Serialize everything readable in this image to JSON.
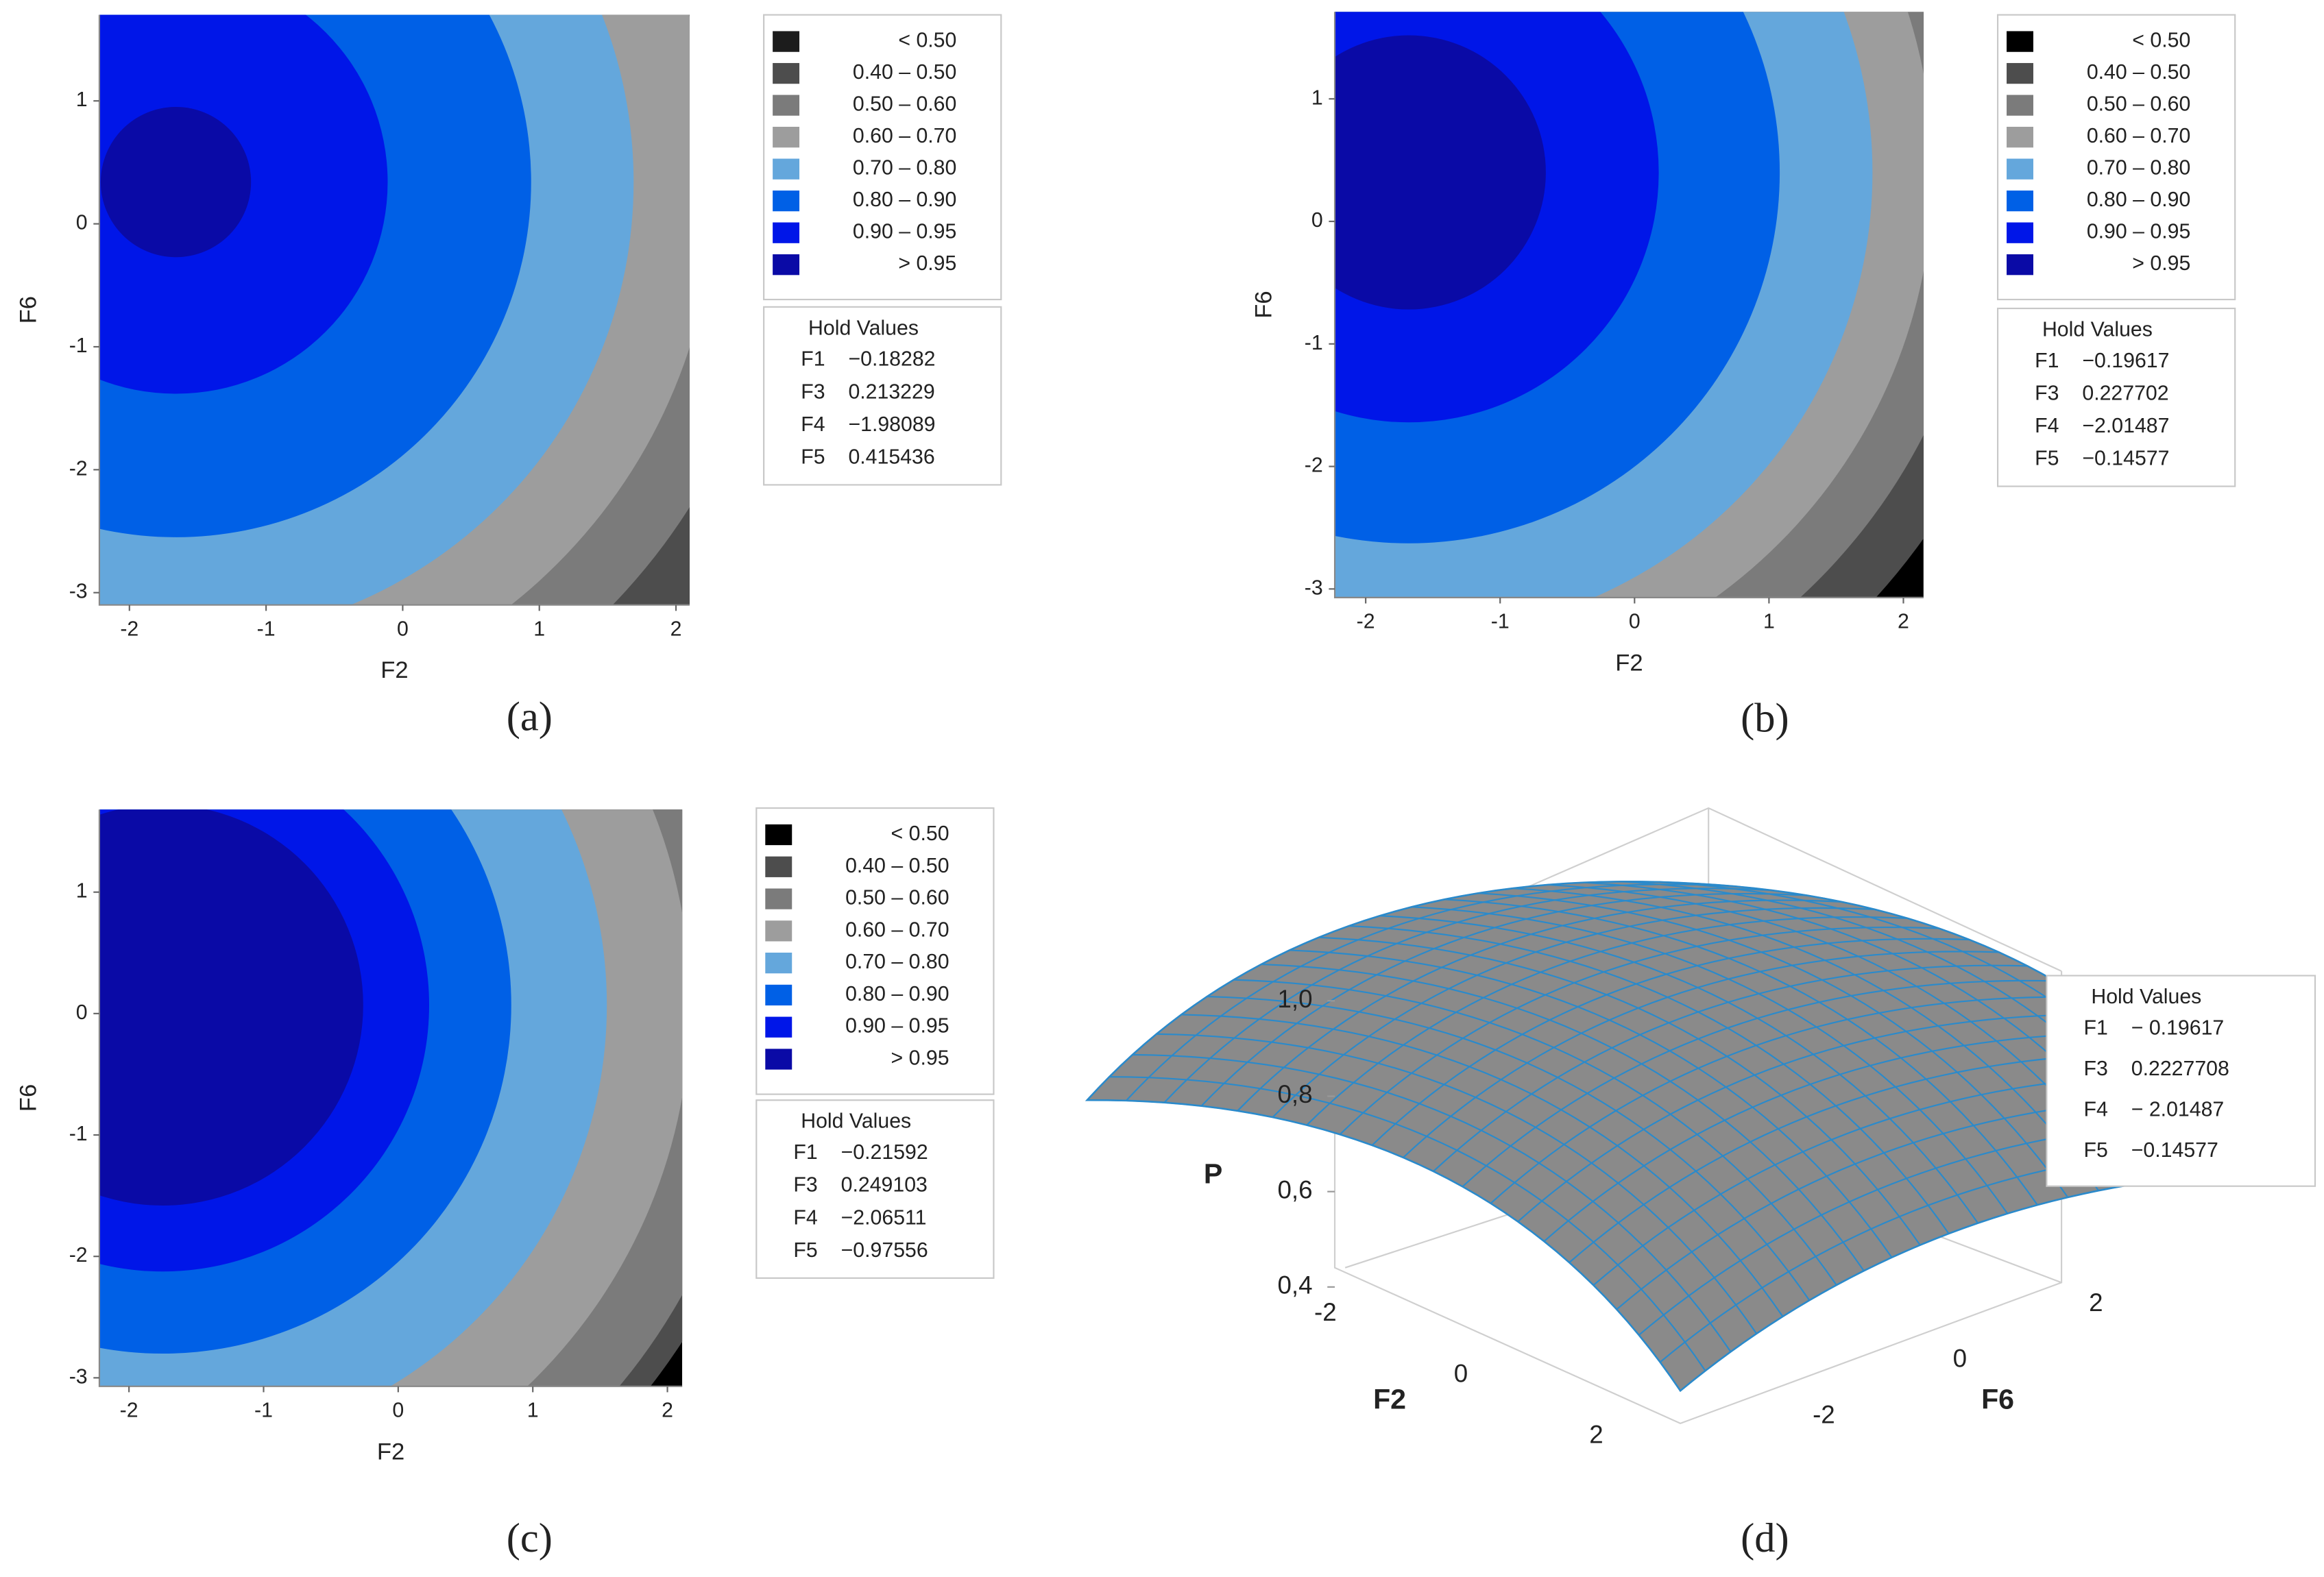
{
  "chart_data": [
    {
      "type": "contour",
      "panel": "(a)",
      "xlabel": "F2",
      "ylabel": "F6",
      "xlim": [
        -2.22,
        2.1
      ],
      "ylim": [
        -3.1,
        1.7
      ],
      "xticks": [
        -2,
        -1,
        0,
        1,
        2
      ],
      "yticks": [
        -3,
        -2,
        -1,
        0,
        1
      ],
      "center": [
        -1.66,
        0.34
      ],
      "radii": [
        null,
        5.0,
        4.45,
        3.95,
        3.35,
        2.6,
        1.55,
        0.55
      ],
      "levels": [
        "< 0.50",
        "0.40 – 0.50",
        "0.50 – 0.60",
        "0.60 – 0.70",
        "0.70 – 0.80",
        "0.80 – 0.90",
        "0.90 – 0.95",
        "> 0.95"
      ],
      "colors": [
        "#1c1c1c",
        "#4d4d4d",
        "#7b7b7b",
        "#9d9d9d",
        "#64a7dc",
        "#0060e6",
        "#0016e8",
        "#0a0aa6"
      ],
      "hold_title": "Hold  Values",
      "hold": [
        {
          "name": "F1",
          "value": "−0.18282"
        },
        {
          "name": "F3",
          "value": "0.213229"
        },
        {
          "name": "F4",
          "value": "−1.98089"
        },
        {
          "name": "F5",
          "value": "0.415436"
        }
      ]
    },
    {
      "type": "contour",
      "panel": "(b)",
      "xlabel": "F2",
      "ylabel": "F6",
      "xlim": [
        -2.23,
        2.15
      ],
      "ylim": [
        -3.07,
        1.71
      ],
      "xticks": [
        -2,
        -1,
        0,
        1,
        2
      ],
      "yticks": [
        -3,
        -2,
        -1,
        0,
        1
      ],
      "center": [
        -1.68,
        0.4
      ],
      "radii": [
        null,
        4.7,
        4.3,
        3.9,
        3.45,
        2.76,
        1.86,
        1.02
      ],
      "levels": [
        "< 0.50",
        "0.40 – 0.50",
        "0.50 – 0.60",
        "0.60 – 0.70",
        "0.70 – 0.80",
        "0.80 – 0.90",
        "0.90 – 0.95",
        "> 0.95"
      ],
      "colors": [
        "#000000",
        "#4d4d4d",
        "#7b7b7b",
        "#9d9d9d",
        "#64a7dc",
        "#0060e6",
        "#0016e8",
        "#0a0aa6"
      ],
      "hold_title": "Hold  Values",
      "hold": [
        {
          "name": "F1",
          "value": "−0.19617"
        },
        {
          "name": "F3",
          "value": "0.227702"
        },
        {
          "name": "F4",
          "value": "−2.01487"
        },
        {
          "name": "F5",
          "value": "−0.14577"
        }
      ]
    },
    {
      "type": "contour",
      "panel": "(c)",
      "xlabel": "F2",
      "ylabel": "F6",
      "xlim": [
        -2.22,
        2.11
      ],
      "ylim": [
        -3.07,
        1.68
      ],
      "xticks": [
        -2,
        -1,
        0,
        1,
        2
      ],
      "yticks": [
        -3,
        -2,
        -1,
        0,
        1
      ],
      "center": [
        -1.75,
        0.07
      ],
      "radii": [
        null,
        4.6,
        4.42,
        3.92,
        3.3,
        2.59,
        1.98,
        1.49
      ],
      "levels": [
        "< 0.50",
        "0.40 – 0.50",
        "0.50 – 0.60",
        "0.60 – 0.70",
        "0.70 – 0.80",
        "0.80 – 0.90",
        "0.90 – 0.95",
        "> 0.95"
      ],
      "colors": [
        "#000000",
        "#4d4d4d",
        "#7b7b7b",
        "#9d9d9d",
        "#64a7dc",
        "#0060e6",
        "#0016e8",
        "#0a0aa6"
      ],
      "hold_title": "Hold  Values",
      "hold": [
        {
          "name": "F1",
          "value": "−0.21592"
        },
        {
          "name": "F3",
          "value": "0.249103"
        },
        {
          "name": "F4",
          "value": "−2.06511"
        },
        {
          "name": "F5",
          "value": "−0.97556"
        }
      ]
    },
    {
      "type": "surface",
      "panel": "(d)",
      "xlabel": "F2",
      "ylabel": "F6",
      "zlabel": "P",
      "xlim": [
        -2.3,
        2.3
      ],
      "ylim": [
        -2.3,
        2.3
      ],
      "zlim": [
        0.4,
        1.0
      ],
      "xticks": [
        -2,
        0,
        2
      ],
      "yticks": [
        -2,
        0,
        2
      ],
      "zticks": [
        {
          "value": 0.4,
          "label": "0,4"
        },
        {
          "value": 0.6,
          "label": "0,6"
        },
        {
          "value": 0.8,
          "label": "0,8"
        },
        {
          "value": 1.0,
          "label": "1,0"
        }
      ],
      "color": "#8a8a8a",
      "mesh_color": "#2b8acb",
      "hold_title": "Hold  Values",
      "hold": [
        {
          "name": "F1",
          "value": "− 0.19617"
        },
        {
          "name": "F3",
          "value": "0.2227708"
        },
        {
          "name": "F4",
          "value": "− 2.01487"
        },
        {
          "name": "F5",
          "value": "−0.14577"
        }
      ]
    }
  ]
}
